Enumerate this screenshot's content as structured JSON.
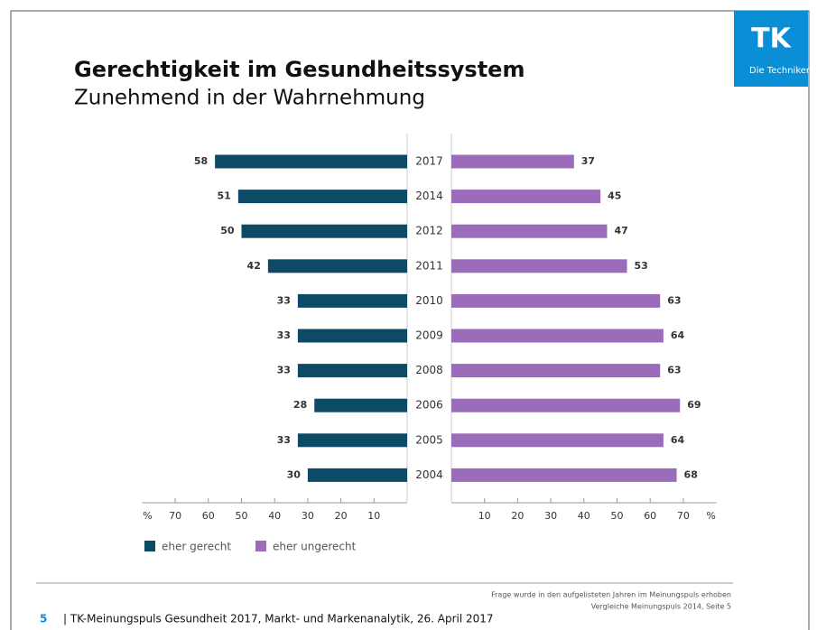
{
  "chart_data": {
    "type": "butterfly",
    "title": "Gerechtigkeit im Gesundheitssystem",
    "subtitle": "Zunehmend in der Wahrnehmung",
    "categories": [
      "2017",
      "2014",
      "2012",
      "2011",
      "2010",
      "2009",
      "2008",
      "2006",
      "2005",
      "2004"
    ],
    "series": [
      {
        "name": "eher gerecht",
        "color": "#0d4a66",
        "side": "left",
        "values": [
          58,
          51,
          50,
          42,
          33,
          33,
          33,
          28,
          33,
          30
        ]
      },
      {
        "name": "eher ungerecht",
        "color": "#9b6cb9",
        "side": "right",
        "values": [
          37,
          45,
          47,
          53,
          63,
          64,
          63,
          69,
          64,
          68
        ]
      }
    ],
    "xlim": [
      0,
      80
    ],
    "xticks": [
      10,
      20,
      30,
      40,
      50,
      60,
      70
    ],
    "x_unit": "%"
  },
  "logo": {
    "mark": "TK",
    "text": "Die Techniker"
  },
  "notes": [
    "Frage wurde in den aufgelisteten Jahren im Meinungspuls erhoben",
    "Vergleiche Meinungspuls 2014, Seite 5"
  ],
  "footer": {
    "page": "5",
    "text": "| TK-Meinungspuls Gesundheit 2017, Markt- und Markenanalytik, 26. April 2017"
  }
}
